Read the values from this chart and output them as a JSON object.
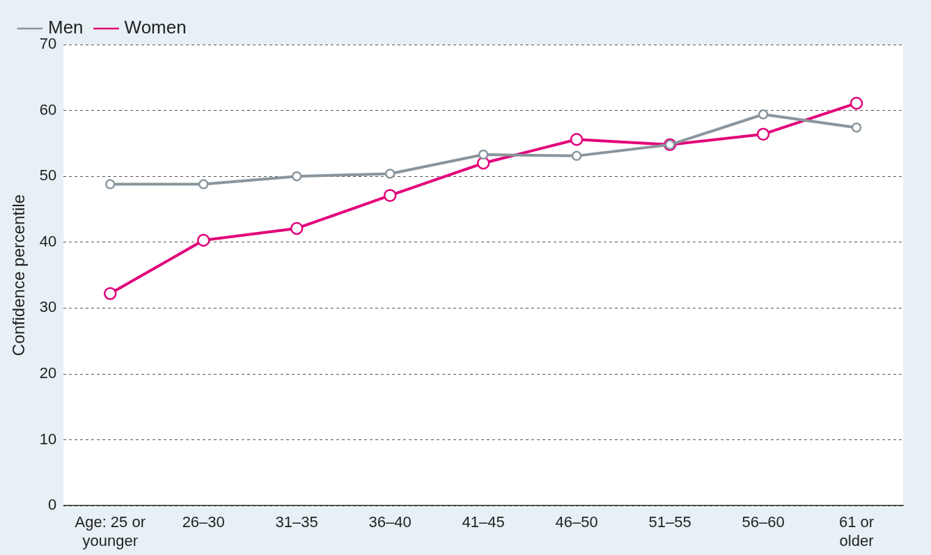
{
  "chart_data": {
    "type": "line",
    "ylabel": "Confidence percentile",
    "categories": [
      "Age: 25 or\nyounger",
      "26–30",
      "31–35",
      "36–40",
      "41–45",
      "46–50",
      "51–55",
      "56–60",
      "61 or\nolder"
    ],
    "series": [
      {
        "name": "Men",
        "color": "#8a959c",
        "values": [
          48.8,
          48.8,
          50.0,
          50.4,
          53.3,
          53.1,
          54.8,
          59.4,
          57.4
        ]
      },
      {
        "name": "Women",
        "color": "#e2007a",
        "values": [
          32.2,
          40.3,
          42.1,
          47.1,
          52.0,
          55.6,
          54.8,
          56.4,
          61.1
        ]
      }
    ],
    "ylim": [
      0,
      70
    ],
    "yticks": [
      0,
      10,
      20,
      30,
      40,
      50,
      60,
      70
    ],
    "grid": "y",
    "legend": "top left",
    "marker": "circle",
    "line_style": "solid"
  }
}
